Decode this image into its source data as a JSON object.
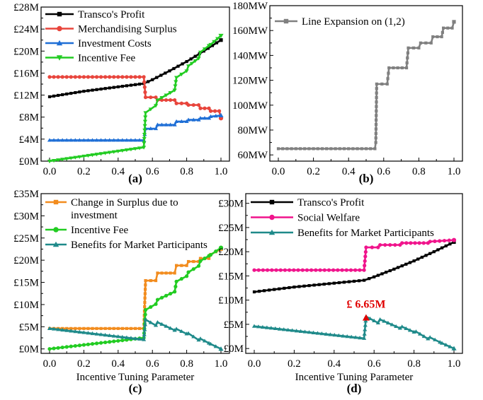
{
  "chart_data": [
    {
      "panel": "(a)",
      "type": "line",
      "xlim": [
        0,
        1
      ],
      "ylim": [
        0,
        28
      ],
      "x_ticks": [
        "0.0",
        "0.2",
        "0.4",
        "0.6",
        "0.8",
        "1.0"
      ],
      "y_ticks": [
        "£0M",
        "£4M",
        "£8M",
        "£12M",
        "£16M",
        "£20M",
        "£24M",
        "£28M"
      ],
      "legend_position": "top-left",
      "xlabel": "",
      "ylabel": "",
      "series": [
        {
          "name": "Transco's Profit",
          "color": "#000000",
          "marker": "square",
          "points": [
            [
              0,
              11.7
            ],
            [
              0.1,
              12.2
            ],
            [
              0.2,
              12.7
            ],
            [
              0.3,
              13.1
            ],
            [
              0.4,
              13.5
            ],
            [
              0.5,
              13.9
            ],
            [
              0.55,
              14.1
            ],
            [
              0.6,
              14.8
            ],
            [
              0.7,
              16.4
            ],
            [
              0.8,
              18.1
            ],
            [
              0.9,
              20
            ],
            [
              1.0,
              22
            ]
          ]
        },
        {
          "name": "Merchandising Surplus",
          "color": "#e8453c",
          "marker": "circle",
          "points": [
            [
              0,
              15.3
            ],
            [
              0.55,
              15.3
            ],
            [
              0.56,
              11.6
            ],
            [
              0.62,
              11.6
            ],
            [
              0.63,
              11.1
            ],
            [
              0.73,
              11.1
            ],
            [
              0.74,
              10.5
            ],
            [
              0.8,
              10.5
            ],
            [
              0.81,
              10.2
            ],
            [
              0.87,
              10.2
            ],
            [
              0.88,
              9.6
            ],
            [
              0.93,
              9.6
            ],
            [
              0.94,
              9.1
            ],
            [
              0.99,
              9.1
            ],
            [
              1.0,
              7.8
            ]
          ]
        },
        {
          "name": "Investment Costs",
          "color": "#1f6fd6",
          "marker": "triangle",
          "points": [
            [
              0,
              3.8
            ],
            [
              0.55,
              3.8
            ],
            [
              0.56,
              5.9
            ],
            [
              0.62,
              5.9
            ],
            [
              0.63,
              6.6
            ],
            [
              0.73,
              6.6
            ],
            [
              0.74,
              7.2
            ],
            [
              0.8,
              7.2
            ],
            [
              0.81,
              7.5
            ],
            [
              0.87,
              7.5
            ],
            [
              0.88,
              7.8
            ],
            [
              0.93,
              7.8
            ],
            [
              0.94,
              8.1
            ],
            [
              1.0,
              8.3
            ]
          ]
        },
        {
          "name": "Incentive Fee",
          "color": "#22cc22",
          "marker": "triangle-down",
          "points": [
            [
              0,
              0
            ],
            [
              0.55,
              2.5
            ],
            [
              0.56,
              8.8
            ],
            [
              0.62,
              10.1
            ],
            [
              0.63,
              11.1
            ],
            [
              0.73,
              12.9
            ],
            [
              0.74,
              15.2
            ],
            [
              0.8,
              16.4
            ],
            [
              0.81,
              17.3
            ],
            [
              0.87,
              18.7
            ],
            [
              0.88,
              19.8
            ],
            [
              0.93,
              21
            ],
            [
              0.94,
              21.2
            ],
            [
              1.0,
              22.8
            ]
          ]
        }
      ]
    },
    {
      "panel": "(b)",
      "type": "line",
      "xlim": [
        0,
        1
      ],
      "ylim": [
        55,
        180
      ],
      "x_ticks": [
        "0.0",
        "0.2",
        "0.4",
        "0.6",
        "0.8",
        "1.0"
      ],
      "y_ticks": [
        "60MW",
        "80MW",
        "100MW",
        "120MW",
        "140MW",
        "160MW",
        "180MW"
      ],
      "legend_position": "top-left",
      "xlabel": "",
      "ylabel": "",
      "series": [
        {
          "name": "Line Expansion on (1,2)",
          "color": "#808080",
          "marker": "square",
          "points": [
            [
              0,
              65
            ],
            [
              0.55,
              65
            ],
            [
              0.555,
              70
            ],
            [
              0.56,
              117
            ],
            [
              0.62,
              117
            ],
            [
              0.63,
              130
            ],
            [
              0.73,
              130
            ],
            [
              0.74,
              146
            ],
            [
              0.8,
              146
            ],
            [
              0.81,
              150
            ],
            [
              0.87,
              150
            ],
            [
              0.88,
              155
            ],
            [
              0.93,
              155
            ],
            [
              0.94,
              162
            ],
            [
              0.99,
              162
            ],
            [
              1.0,
              167
            ]
          ]
        }
      ]
    },
    {
      "panel": "(c)",
      "type": "line",
      "xlim": [
        0,
        1
      ],
      "ylim": [
        -1,
        35
      ],
      "x_ticks": [
        "0.0",
        "0.2",
        "0.4",
        "0.6",
        "0.8",
        "1.0"
      ],
      "y_ticks": [
        "£0M",
        "£5M",
        "£10M",
        "£15M",
        "£20M",
        "£25M",
        "£30M",
        "£35M"
      ],
      "legend_position": "top-left",
      "xlabel": "Incentive Tuning Parameter",
      "ylabel": "",
      "series": [
        {
          "name": "Change in Surplus due to investment",
          "color": "#f28c1e",
          "marker": "square",
          "points": [
            [
              0,
              4.6
            ],
            [
              0.55,
              4.6
            ],
            [
              0.56,
              15.4
            ],
            [
              0.62,
              15.4
            ],
            [
              0.63,
              17.1
            ],
            [
              0.73,
              17.1
            ],
            [
              0.74,
              18.8
            ],
            [
              0.8,
              18.8
            ],
            [
              0.81,
              19.7
            ],
            [
              0.87,
              19.7
            ],
            [
              0.88,
              20.4
            ],
            [
              0.93,
              20.4
            ],
            [
              0.94,
              21.3
            ],
            [
              1.0,
              22.5
            ]
          ]
        },
        {
          "name": "Incentive Fee",
          "color": "#22cc22",
          "marker": "circle",
          "points": [
            [
              0,
              0
            ],
            [
              0.55,
              2.5
            ],
            [
              0.56,
              8.8
            ],
            [
              0.62,
              10.1
            ],
            [
              0.63,
              11.1
            ],
            [
              0.73,
              12.9
            ],
            [
              0.74,
              15.2
            ],
            [
              0.8,
              16.4
            ],
            [
              0.81,
              17.3
            ],
            [
              0.87,
              18.7
            ],
            [
              0.88,
              19.8
            ],
            [
              0.93,
              21
            ],
            [
              0.94,
              21.2
            ],
            [
              1.0,
              22.8
            ]
          ]
        },
        {
          "name": "Benefits for Market Participants",
          "color": "#1f8a8a",
          "marker": "triangle",
          "points": [
            [
              0,
              4.6
            ],
            [
              0.55,
              2.1
            ],
            [
              0.56,
              6.6
            ],
            [
              0.62,
              5.3
            ],
            [
              0.63,
              6
            ],
            [
              0.73,
              4.2
            ],
            [
              0.74,
              4.5
            ],
            [
              0.8,
              3.4
            ],
            [
              0.81,
              3.5
            ],
            [
              0.87,
              2
            ],
            [
              0.88,
              2.3
            ],
            [
              0.93,
              1.3
            ],
            [
              0.94,
              1.1
            ],
            [
              1.0,
              0
            ]
          ]
        }
      ]
    },
    {
      "panel": "(d)",
      "type": "line",
      "xlim": [
        0,
        1
      ],
      "ylim": [
        -1,
        32
      ],
      "x_ticks": [
        "0.0",
        "0.2",
        "0.4",
        "0.6",
        "0.8",
        "1.0"
      ],
      "y_ticks": [
        "£0M",
        "£5M",
        "£10M",
        "£15M",
        "£20M",
        "£25M",
        "£30M"
      ],
      "legend_position": "top-left",
      "xlabel": "Incentive Tuning Parameter",
      "ylabel": "",
      "annotation": {
        "text": "£ 6.65M",
        "x": 0.56,
        "y": 6.65,
        "color": "#e00000"
      },
      "series": [
        {
          "name": "Transco's Profit",
          "color": "#000000",
          "marker": "square",
          "points": [
            [
              0,
              11.7
            ],
            [
              0.1,
              12.2
            ],
            [
              0.2,
              12.7
            ],
            [
              0.3,
              13.1
            ],
            [
              0.4,
              13.5
            ],
            [
              0.5,
              13.9
            ],
            [
              0.55,
              14.1
            ],
            [
              0.6,
              14.8
            ],
            [
              0.7,
              16.4
            ],
            [
              0.8,
              18.1
            ],
            [
              0.9,
              20
            ],
            [
              1.0,
              22
            ]
          ]
        },
        {
          "name": "Social Welfare",
          "color": "#f0148c",
          "marker": "circle",
          "points": [
            [
              0,
              16.2
            ],
            [
              0.55,
              16.2
            ],
            [
              0.56,
              20.9
            ],
            [
              0.62,
              20.9
            ],
            [
              0.63,
              21.4
            ],
            [
              0.73,
              21.4
            ],
            [
              0.74,
              21.8
            ],
            [
              0.87,
              21.8
            ],
            [
              0.88,
              22.1
            ],
            [
              1.0,
              22.4
            ]
          ]
        },
        {
          "name": "Benefits for Market Participants",
          "color": "#1f8a8a",
          "marker": "triangle",
          "points": [
            [
              0,
              4.6
            ],
            [
              0.55,
              2.1
            ],
            [
              0.56,
              6.6
            ],
            [
              0.62,
              5.3
            ],
            [
              0.63,
              6
            ],
            [
              0.73,
              4.2
            ],
            [
              0.74,
              4.5
            ],
            [
              0.8,
              3.4
            ],
            [
              0.81,
              3.5
            ],
            [
              0.87,
              2
            ],
            [
              0.88,
              2.3
            ],
            [
              0.93,
              1.3
            ],
            [
              0.94,
              1.1
            ],
            [
              1.0,
              0
            ]
          ]
        }
      ]
    }
  ]
}
